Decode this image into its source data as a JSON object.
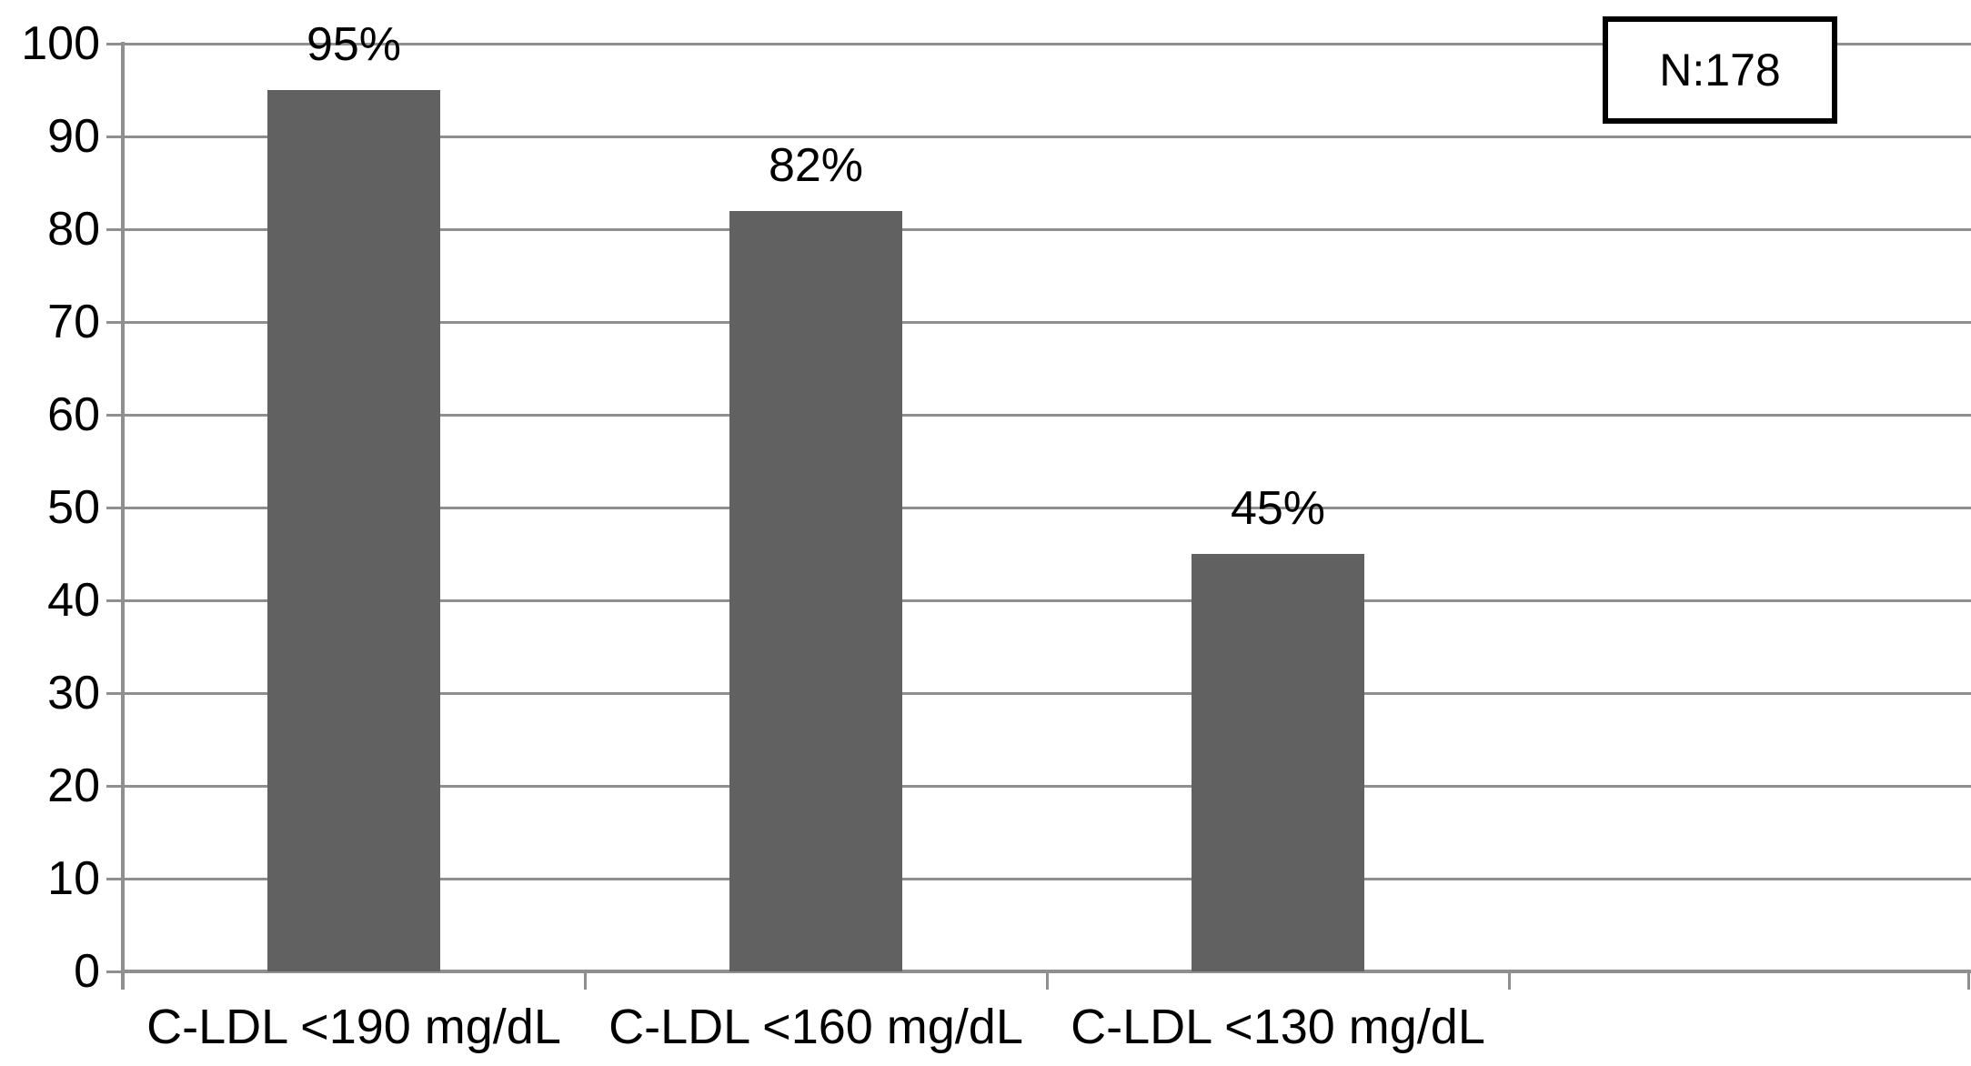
{
  "chart_data": {
    "type": "bar",
    "categories": [
      "C-LDL <190 mg/dL",
      "C-LDL <160 mg/dL",
      "C-LDL <130 mg/dL"
    ],
    "values": [
      95,
      82,
      45
    ],
    "bar_labels": [
      "95%",
      "82%",
      "45%"
    ],
    "title": "",
    "xlabel": "",
    "ylabel": "",
    "ylim": [
      0,
      100
    ],
    "yticks": [
      0,
      10,
      20,
      30,
      40,
      50,
      60,
      70,
      80,
      90,
      100
    ],
    "grid": true,
    "legend": false,
    "category_slots": 4,
    "annotation": "N:178",
    "annotation_position": "top-right",
    "colors": {
      "bar": "#616161",
      "gridline": "#8f8f8f",
      "axis": "#8f8f8f",
      "text": "#000000",
      "annotation_border": "#000000",
      "background": "#ffffff"
    }
  }
}
